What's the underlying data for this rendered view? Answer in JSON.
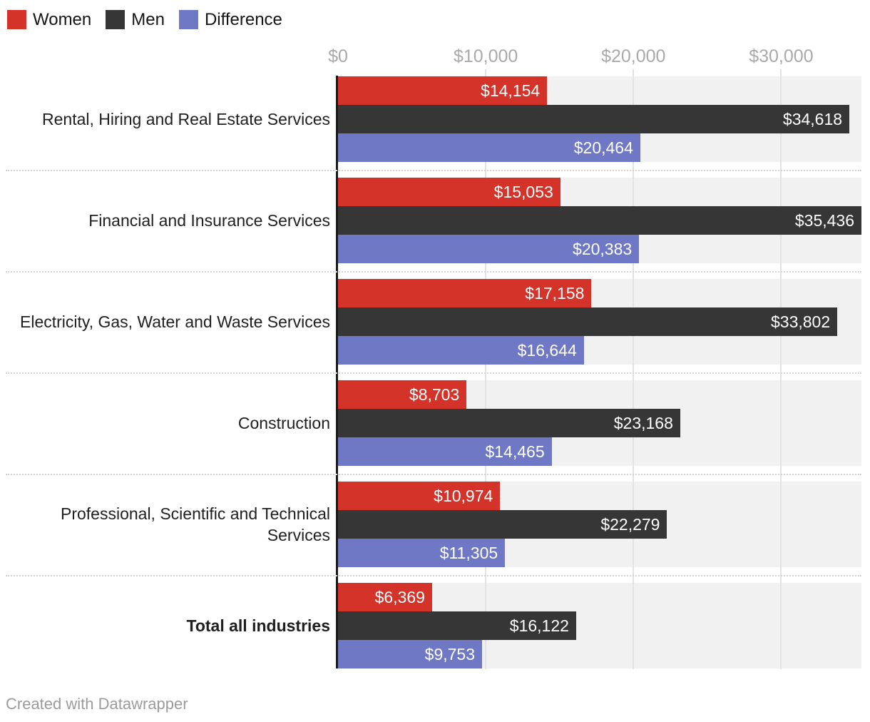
{
  "legend": {
    "items": [
      {
        "label": "Women",
        "color": "#d4332a"
      },
      {
        "label": "Men",
        "color": "#363636"
      },
      {
        "label": "Difference",
        "color": "#6f78c5"
      }
    ]
  },
  "footer": {
    "credit": "Created with Datawrapper"
  },
  "chart_data": {
    "type": "bar",
    "orientation": "horizontal",
    "grid": "vertical",
    "legend_position": "top-left",
    "value_labels_position": "inside-end",
    "categories": [
      {
        "label": "Rental, Hiring and Real Estate Services",
        "bold": false
      },
      {
        "label": "Financial and Insurance Services",
        "bold": false
      },
      {
        "label": "Electricity, Gas, Water and Waste Services",
        "bold": false
      },
      {
        "label": "Construction",
        "bold": false
      },
      {
        "label": "Professional, Scientific and Technical Services",
        "bold": false
      },
      {
        "label": "Total all industries",
        "bold": true
      }
    ],
    "series": [
      {
        "name": "Women",
        "color": "#d4332a",
        "values": [
          14154,
          15053,
          17158,
          8703,
          10974,
          6369
        ],
        "labels": [
          "$14,154",
          "$15,053",
          "$17,158",
          "$8,703",
          "$10,974",
          "$6,369"
        ]
      },
      {
        "name": "Men",
        "color": "#363636",
        "values": [
          34618,
          35436,
          33802,
          23168,
          22279,
          16122
        ],
        "labels": [
          "$34,618",
          "$35,436",
          "$33,802",
          "$23,168",
          "$22,279",
          "$16,122"
        ]
      },
      {
        "name": "Difference",
        "color": "#6f78c5",
        "values": [
          20464,
          20383,
          16644,
          14465,
          11305,
          9753
        ],
        "labels": [
          "$20,464",
          "$20,383",
          "$16,644",
          "$14,465",
          "$11,305",
          "$9,753"
        ]
      }
    ],
    "x_axis": {
      "max": 35436,
      "ticks": [
        {
          "value": 0,
          "label": "$0"
        },
        {
          "value": 10000,
          "label": "$10,000"
        },
        {
          "value": 20000,
          "label": "$20,000"
        },
        {
          "value": 30000,
          "label": "$30,000"
        }
      ]
    },
    "style_colors": {
      "bar_track": "#f1f1f1",
      "gridline": "#e3e3e3",
      "axis_line": "#1a1a1a",
      "tick_label": "#a9a9a9",
      "category_label": "#1f1f1f",
      "value_label": "#ffffff",
      "separator": "#d2d2d2",
      "footer_text": "#9b9b9b"
    }
  }
}
